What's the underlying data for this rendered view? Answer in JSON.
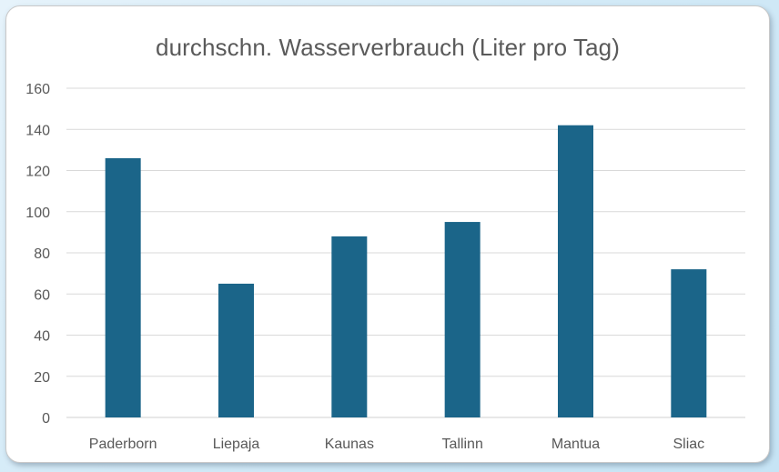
{
  "chart_data": {
    "type": "bar",
    "title": "durchschn. Wasserverbrauch (Liter pro Tag)",
    "xlabel": "",
    "ylabel": "",
    "categories": [
      "Paderborn",
      "Liepaja",
      "Kaunas",
      "Tallinn",
      "Mantua",
      "Sliac"
    ],
    "values": [
      126,
      65,
      88,
      95,
      142,
      72
    ],
    "ylim": [
      0,
      160
    ],
    "yticks": [
      "0",
      "20",
      "40",
      "60",
      "80",
      "100",
      "120",
      "140",
      "160"
    ],
    "grid": true,
    "legend": "none",
    "colors": {
      "bar": "#1b6589",
      "grid": "#d9d9d9",
      "text": "#595959",
      "background": "#ffffff"
    }
  }
}
